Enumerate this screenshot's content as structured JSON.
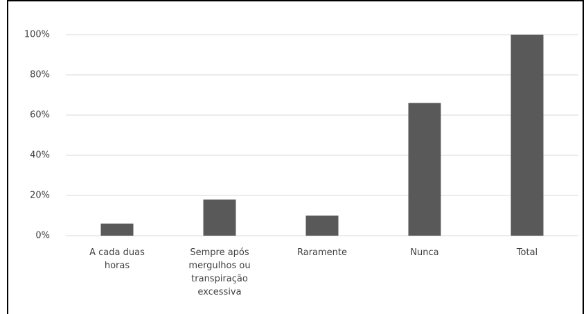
{
  "chart_data": {
    "type": "bar",
    "categories": [
      "A cada duas horas",
      "Sempre após mergulhos ou transpiração excessiva",
      "Raramente",
      "Nunca",
      "Total"
    ],
    "values": [
      6,
      18,
      10,
      66,
      100
    ],
    "color": "#595959",
    "ylim": [
      0,
      100
    ],
    "yticks": [
      {
        "value": 0,
        "label": "0%"
      },
      {
        "value": 20,
        "label": "20%"
      },
      {
        "value": 40,
        "label": "40%"
      },
      {
        "value": 60,
        "label": "60%"
      },
      {
        "value": 80,
        "label": "80%"
      },
      {
        "value": 100,
        "label": "100%"
      }
    ],
    "grid": true
  }
}
